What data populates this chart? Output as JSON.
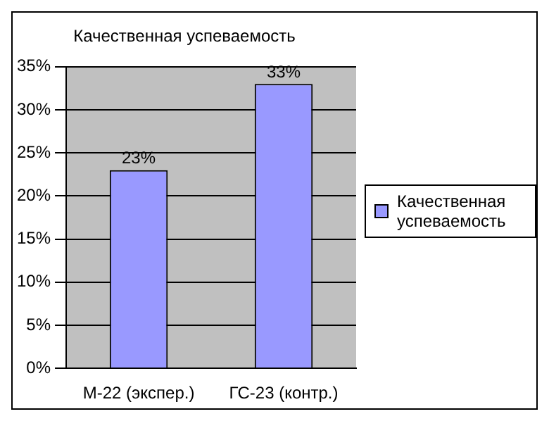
{
  "chart_data": {
    "type": "bar",
    "title": "Качественная успеваемость",
    "categories": [
      "М-22 (экспер.)",
      "ГС-23 (контр.)"
    ],
    "series": [
      {
        "name": "Качественная успеваемость",
        "color": "#9999ff",
        "values": [
          23,
          33
        ],
        "value_labels": [
          "23%",
          "33%"
        ]
      }
    ],
    "ylim": [
      0,
      35
    ],
    "yticks": [
      {
        "value": 0,
        "label": "0%"
      },
      {
        "value": 5,
        "label": "5%"
      },
      {
        "value": 10,
        "label": "10%"
      },
      {
        "value": 15,
        "label": "15%"
      },
      {
        "value": 20,
        "label": "20%"
      },
      {
        "value": 25,
        "label": "25%"
      },
      {
        "value": 30,
        "label": "30%"
      },
      {
        "value": 35,
        "label": "35%"
      }
    ],
    "grid": "y",
    "legend": "right"
  }
}
